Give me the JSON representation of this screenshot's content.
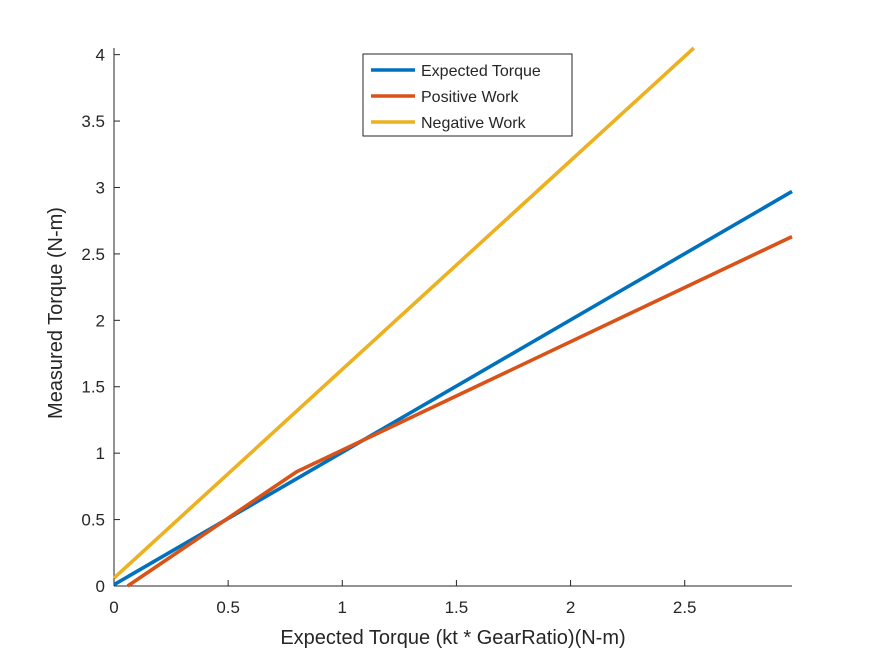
{
  "chart_data": {
    "type": "line",
    "xlabel": "Expected Torque (kt * GearRatio)(N-m)",
    "ylabel": "Measured Torque (N-m)",
    "xlim": [
      0,
      2.97
    ],
    "ylim": [
      0,
      4.05
    ],
    "xticks": [
      "0",
      "0.5",
      "1",
      "1.5",
      "2",
      "2.5"
    ],
    "yticks": [
      "0",
      "0.5",
      "1",
      "1.5",
      "2",
      "2.5",
      "3",
      "3.5",
      "4"
    ],
    "grid": false,
    "legend_position": "top-center",
    "series": [
      {
        "name": "Expected Torque",
        "color": "#0072BD",
        "x": [
          0,
          2.97
        ],
        "y": [
          0.01,
          2.97
        ]
      },
      {
        "name": "Positive Work",
        "color": "#D95319",
        "x": [
          0.06,
          0.8,
          2.97
        ],
        "y": [
          0,
          0.86,
          2.63
        ]
      },
      {
        "name": "Negative Work",
        "color": "#EDB120",
        "x": [
          0,
          2.54
        ],
        "y": [
          0.06,
          4.05
        ]
      }
    ]
  }
}
